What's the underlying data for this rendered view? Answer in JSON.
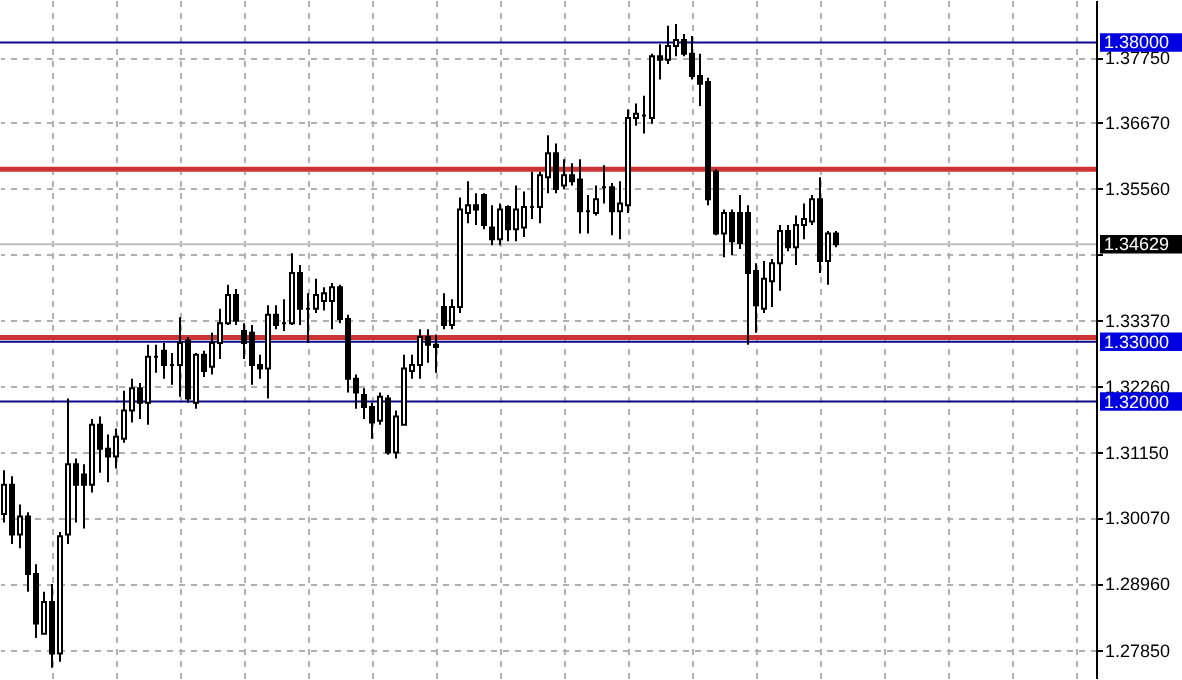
{
  "chart_data": {
    "type": "candlestick",
    "categories": [
      null,
      null,
      null,
      null,
      null,
      null,
      null,
      null,
      null,
      null,
      null,
      null,
      null,
      null,
      null,
      null,
      null,
      null,
      null,
      null,
      null,
      null,
      null,
      null,
      null,
      null,
      null,
      null,
      null,
      null,
      null,
      null,
      null,
      null,
      null,
      null,
      null,
      null,
      null,
      null,
      null,
      null,
      null,
      null,
      null,
      null,
      null,
      null,
      null,
      null,
      null,
      null,
      null,
      null,
      null,
      null,
      null,
      null,
      null,
      null,
      null,
      null,
      null,
      null,
      null,
      null,
      null,
      null,
      null,
      null,
      null,
      null,
      null,
      null,
      null,
      null,
      null,
      null,
      null,
      null,
      null,
      null,
      null,
      null,
      null,
      null,
      null,
      null,
      null,
      null,
      null,
      null,
      null,
      null,
      null,
      null,
      null,
      null,
      null,
      null,
      null,
      null,
      null,
      null,
      null,
      null,
      null,
      null,
      null,
      null,
      null,
      null,
      null,
      null,
      null,
      null,
      null,
      null,
      null,
      null,
      null,
      null,
      null,
      null,
      null,
      null,
      null,
      null,
      null,
      null,
      null,
      null,
      null,
      null,
      null,
      null,
      null
    ],
    "ohlc": [
      [
        1.3012,
        1.3085,
        1.2998,
        1.3061
      ],
      [
        1.3061,
        1.3075,
        1.2962,
        1.2978
      ],
      [
        1.2978,
        1.3028,
        1.2955,
        1.3008
      ],
      [
        1.3008,
        1.3015,
        1.2882,
        1.2912
      ],
      [
        1.2912,
        1.2928,
        1.2805,
        1.2829
      ],
      [
        1.2812,
        1.2882,
        1.2812,
        1.2865
      ],
      [
        1.2865,
        1.2895,
        1.2755,
        1.2779
      ],
      [
        1.2779,
        1.2982,
        1.2765,
        1.2975
      ],
      [
        1.2978,
        1.3205,
        1.2962,
        1.3095
      ],
      [
        1.3095,
        1.3105,
        1.2998,
        1.3061
      ],
      [
        1.3078,
        1.3095,
        1.2988,
        1.3061
      ],
      [
        1.3061,
        1.3171,
        1.3048,
        1.3161
      ],
      [
        1.3161,
        1.3175,
        1.3081,
        1.3121
      ],
      [
        1.3121,
        1.3145,
        1.3065,
        1.3108
      ],
      [
        1.3108,
        1.3155,
        1.3088,
        1.3141
      ],
      [
        1.3138,
        1.3218,
        1.3131,
        1.3185
      ],
      [
        1.3185,
        1.3238,
        1.3165,
        1.3222
      ],
      [
        1.3222,
        1.3231,
        1.3171,
        1.3198
      ],
      [
        1.3198,
        1.3295,
        1.3161,
        1.3275
      ],
      [
        1.3275,
        1.3295,
        1.3248,
        1.3275
      ],
      [
        1.3285,
        1.3298,
        1.3238,
        1.3261
      ],
      [
        1.3261,
        1.3281,
        1.3228,
        1.3261
      ],
      [
        1.3261,
        1.3341,
        1.3208,
        1.3298
      ],
      [
        1.3302,
        1.3308,
        1.3198,
        1.3205
      ],
      [
        1.3198,
        1.3281,
        1.3188,
        1.3278
      ],
      [
        1.3278,
        1.3285,
        1.3241,
        1.3251
      ],
      [
        1.3258,
        1.3315,
        1.3245,
        1.3298
      ],
      [
        1.3298,
        1.3355,
        1.3271,
        1.3331
      ],
      [
        1.3331,
        1.3395,
        1.3328,
        1.3378
      ],
      [
        1.3378,
        1.3388,
        1.3328,
        1.3335
      ],
      [
        1.3318,
        1.3331,
        1.3271,
        1.3298
      ],
      [
        1.3315,
        1.3328,
        1.3228,
        1.3261
      ],
      [
        1.3261,
        1.3278,
        1.3238,
        1.3255
      ],
      [
        1.3255,
        1.3361,
        1.3205,
        1.3345
      ],
      [
        1.3345,
        1.3361,
        1.3321,
        1.3328
      ],
      [
        1.3331,
        1.3371,
        1.3318,
        1.3331
      ],
      [
        1.3331,
        1.3448,
        1.3328,
        1.3415
      ],
      [
        1.3415,
        1.3428,
        1.3328,
        1.3355
      ],
      [
        1.3355,
        1.3381,
        1.3298,
        1.3355
      ],
      [
        1.3355,
        1.3405,
        1.3348,
        1.3378
      ],
      [
        1.3368,
        1.3391,
        1.3352,
        1.3381
      ],
      [
        1.3368,
        1.3398,
        1.3321,
        1.3391
      ],
      [
        1.3391,
        1.3395,
        1.3331,
        1.3338
      ],
      [
        1.3338,
        1.3345,
        1.3215,
        1.3238
      ],
      [
        1.3238,
        1.3245,
        1.3188,
        1.3215
      ],
      [
        1.3211,
        1.3222,
        1.3171,
        1.3191
      ],
      [
        1.3191,
        1.3198,
        1.3138,
        1.3165
      ],
      [
        1.3168,
        1.3215,
        1.3161,
        1.3208
      ],
      [
        1.3205,
        1.3211,
        1.3111,
        1.3115
      ],
      [
        1.3115,
        1.3185,
        1.3105,
        1.3175
      ],
      [
        1.3161,
        1.3278,
        1.3161,
        1.3255
      ],
      [
        1.3251,
        1.3278,
        1.3238,
        1.3261
      ],
      [
        1.3261,
        1.3321,
        1.3238,
        1.3308
      ],
      [
        1.3308,
        1.3321,
        1.3265,
        1.3295
      ],
      [
        1.3295,
        1.3312,
        1.3248,
        1.3291
      ],
      [
        1.3358,
        1.3381,
        1.3321,
        1.3328
      ],
      [
        1.3328,
        1.3371,
        1.3321,
        1.3358
      ],
      [
        1.3358,
        1.3541,
        1.3348,
        1.3521
      ],
      [
        1.3515,
        1.3568,
        1.3498,
        1.3528
      ],
      [
        1.3528,
        1.3548,
        1.3495,
        1.3521
      ],
      [
        1.3545,
        1.3548,
        1.3488,
        1.3495
      ],
      [
        1.3491,
        1.3528,
        1.3461,
        1.3471
      ],
      [
        1.3471,
        1.3531,
        1.3461,
        1.3521
      ],
      [
        1.3525,
        1.3528,
        1.3468,
        1.3488
      ],
      [
        1.3488,
        1.3561,
        1.3468,
        1.3521
      ],
      [
        1.3491,
        1.3551,
        1.3475,
        1.3525
      ],
      [
        1.3525,
        1.3584,
        1.3505,
        1.3525
      ],
      [
        1.3525,
        1.3584,
        1.3498,
        1.3578
      ],
      [
        1.3575,
        1.3645,
        1.3548,
        1.3615
      ],
      [
        1.3615,
        1.3631,
        1.3548,
        1.3555
      ],
      [
        1.3561,
        1.3605,
        1.3555,
        1.3578
      ],
      [
        1.3578,
        1.3598,
        1.3561,
        1.3568
      ],
      [
        1.3571,
        1.3605,
        1.3481,
        1.3518
      ],
      [
        1.3518,
        1.3545,
        1.3481,
        1.3518
      ],
      [
        1.3515,
        1.3561,
        1.3511,
        1.3538
      ],
      [
        1.3558,
        1.3595,
        1.3531,
        1.3558
      ],
      [
        1.3558,
        1.3565,
        1.3478,
        1.3518
      ],
      [
        1.3518,
        1.3568,
        1.3471,
        1.3531
      ],
      [
        1.3528,
        1.3688,
        1.3515,
        1.3674
      ],
      [
        1.3674,
        1.3698,
        1.3661,
        1.3681
      ],
      [
        1.3678,
        1.3711,
        1.3648,
        1.3678
      ],
      [
        1.3674,
        1.3781,
        1.3664,
        1.3777
      ],
      [
        1.3777,
        1.3797,
        1.3738,
        1.3771
      ],
      [
        1.3771,
        1.3828,
        1.3764,
        1.3794
      ],
      [
        1.3794,
        1.3831,
        1.3777,
        1.3804
      ],
      [
        1.3804,
        1.3814,
        1.3777,
        1.3781
      ],
      [
        1.3781,
        1.3811,
        1.3738,
        1.3744
      ],
      [
        1.3744,
        1.3781,
        1.3694,
        1.3731
      ],
      [
        1.3734,
        1.3741,
        1.3528,
        1.3538
      ],
      [
        1.3584,
        1.3588,
        1.3478,
        1.3481
      ],
      [
        1.3481,
        1.3521,
        1.3441,
        1.3515
      ],
      [
        1.3515,
        1.3521,
        1.3445,
        1.3468
      ],
      [
        1.3515,
        1.3545,
        1.3455,
        1.3465
      ],
      [
        1.3515,
        1.3528,
        1.3295,
        1.3415
      ],
      [
        1.3418,
        1.3431,
        1.3315,
        1.3361
      ],
      [
        1.3355,
        1.3435,
        1.3348,
        1.3405
      ],
      [
        1.3401,
        1.3438,
        1.3358,
        1.3431
      ],
      [
        1.3431,
        1.3495,
        1.3385,
        1.3485
      ],
      [
        1.3485,
        1.3495,
        1.3451,
        1.3458
      ],
      [
        1.3458,
        1.3511,
        1.3428,
        1.3495
      ],
      [
        1.3495,
        1.3531,
        1.3471,
        1.3505
      ],
      [
        1.3501,
        1.3545,
        1.3495,
        1.3538
      ],
      [
        1.3538,
        1.3575,
        1.3415,
        1.3435
      ],
      [
        1.3435,
        1.3485,
        1.3395,
        1.3481
      ],
      [
        1.3481,
        1.3485,
        1.3458,
        1.3463
      ],
      null,
      null,
      null,
      null,
      null,
      null,
      null,
      null,
      null,
      null,
      null,
      null,
      null,
      null,
      null,
      null,
      null,
      null,
      null,
      null,
      null,
      null,
      null,
      null,
      null,
      null,
      null,
      null,
      null,
      null,
      null,
      null
    ],
    "ylim": [
      1.2738,
      1.3871
    ],
    "yticks": [
      {
        "value": 1.2785,
        "label": "1.27850"
      },
      {
        "value": 1.2896,
        "label": "1.28960"
      },
      {
        "value": 1.3007,
        "label": "1.30070"
      },
      {
        "value": 1.3115,
        "label": "1.31150"
      },
      {
        "value": 1.3226,
        "label": "1.32260"
      },
      {
        "value": 1.3337,
        "label": "1.33370"
      },
      {
        "value": 1.3447,
        "label": null
      },
      {
        "value": 1.3556,
        "label": "1.35560"
      },
      {
        "value": 1.3667,
        "label": "1.36670"
      },
      {
        "value": 1.3775,
        "label": "1.37750"
      }
    ],
    "ref_lines": [
      {
        "axis": "y",
        "value": 1.38,
        "label": "1.38000",
        "color": "#0a0a8a"
      },
      {
        "axis": "y",
        "value": 1.33,
        "label": "1.33000",
        "color": "#0a0a8a"
      },
      {
        "axis": "y",
        "value": 1.32,
        "label": "1.32000",
        "color": "#0a0a8a"
      },
      {
        "axis": "y",
        "value": 1.34629,
        "label": "1.34629",
        "color": "#c0c0c0"
      },
      {
        "axis": "y",
        "value": 1.3588,
        "color": "#cc3333"
      },
      {
        "axis": "y",
        "value": 1.3307,
        "color": "#cc3333"
      }
    ],
    "grid": true,
    "tick_labels": "y"
  }
}
